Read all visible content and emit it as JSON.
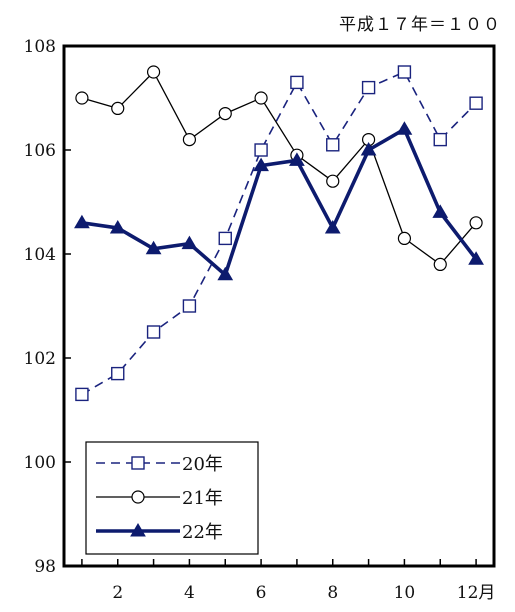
{
  "chart_data": {
    "type": "line",
    "note": "平成１７年＝１００",
    "x": [
      1,
      2,
      3,
      4,
      5,
      6,
      7,
      8,
      9,
      10,
      11,
      12
    ],
    "x_tick_labels": [
      "2",
      "4",
      "6",
      "8",
      "10",
      "12月"
    ],
    "x_tick_values": [
      2,
      4,
      6,
      8,
      10,
      12
    ],
    "ylim": [
      98,
      108
    ],
    "y_ticks": [
      98,
      100,
      102,
      104,
      106,
      108
    ],
    "series": [
      {
        "name": "20年",
        "values": [
          101.3,
          101.7,
          102.5,
          103.0,
          104.3,
          106.0,
          107.3,
          106.1,
          107.2,
          107.5,
          106.2,
          106.9
        ],
        "line": "dashed",
        "marker": "square-open",
        "color": "#1a237e"
      },
      {
        "name": "21年",
        "values": [
          107.0,
          106.8,
          107.5,
          106.2,
          106.7,
          107.0,
          105.9,
          105.4,
          106.2,
          104.3,
          103.8,
          104.6
        ],
        "line": "solid-thin",
        "marker": "circle-open",
        "color": "#000000"
      },
      {
        "name": "22年",
        "values": [
          104.6,
          104.5,
          104.1,
          104.2,
          103.6,
          105.7,
          105.8,
          104.5,
          106.0,
          106.4,
          104.8,
          103.9
        ],
        "line": "solid-thick",
        "marker": "triangle-filled",
        "color": "#0d1b6e"
      }
    ],
    "legend": "bottom-left",
    "grid": false
  }
}
